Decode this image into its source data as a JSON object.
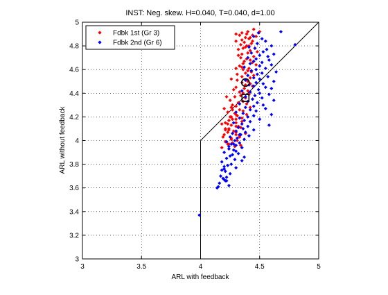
{
  "chart_data": {
    "type": "scatter",
    "title": "INST: Neg. skew. H=0.040, T=0.040, d=1.00",
    "xlabel": "ARL with feedback",
    "ylabel": "ARL without feedback",
    "xlim": [
      3,
      5
    ],
    "ylim": [
      3,
      5
    ],
    "xticks": [
      3,
      3.5,
      4,
      4.5,
      5
    ],
    "xtick_labels": [
      "3",
      "3.5",
      "4",
      "4.5",
      "5"
    ],
    "yticks": [
      3,
      3.2,
      3.4,
      3.6,
      3.8,
      4,
      4.2,
      4.4,
      4.6,
      4.8,
      5
    ],
    "ytick_labels": [
      "3",
      "3.2",
      "3.4",
      "3.6",
      "3.8",
      "4",
      "4.2",
      "4.4",
      "4.6",
      "4.8",
      "5"
    ],
    "grid": true,
    "legend_position": "top-left",
    "colors": {
      "red": "#ff0000",
      "blue": "#0000ff",
      "axis": "#000000"
    },
    "reference_lines": [
      {
        "x": [
          4,
          5
        ],
        "y": [
          4,
          5
        ]
      },
      {
        "x": [
          4,
          4
        ],
        "y": [
          3,
          4
        ]
      }
    ],
    "markers": [
      {
        "shape": "circle",
        "x": 4.38,
        "y": 4.49
      },
      {
        "shape": "square",
        "x": 4.38,
        "y": 4.36
      }
    ],
    "series": [
      {
        "name": "Fdbk 1st  (Gr 3)",
        "color": "#ff0000",
        "marker": "diamond",
        "x": [
          4.45,
          4.5,
          4.4,
          4.35,
          4.39,
          4.3,
          4.33,
          4.44,
          4.47,
          4.38,
          4.42,
          4.41,
          4.35,
          4.44,
          4.3,
          4.37,
          4.43,
          4.34,
          4.39,
          4.41,
          4.38,
          4.46,
          4.36,
          4.32,
          4.42,
          4.48,
          4.4,
          4.35,
          4.32,
          4.45,
          4.34,
          4.39,
          4.42,
          4.37,
          4.44,
          4.36,
          4.47,
          4.33,
          4.35,
          4.3,
          4.41,
          4.36,
          4.4,
          4.43,
          4.38,
          4.31,
          4.45,
          4.35,
          4.42,
          4.26,
          4.31,
          4.4,
          4.35,
          4.42,
          4.38,
          4.44,
          4.3,
          4.37,
          4.28,
          4.4,
          4.33,
          4.36,
          4.41,
          4.34,
          4.29,
          4.38,
          4.44,
          4.25,
          4.36,
          4.32,
          4.39,
          4.27,
          4.3,
          4.42,
          4.2,
          4.33,
          4.36,
          4.23,
          4.29,
          4.39,
          4.31,
          4.25,
          4.35,
          4.3,
          4.24,
          4.35,
          4.3,
          4.18,
          4.26,
          4.3,
          4.34,
          4.21,
          4.24,
          4.28,
          4.23,
          4.38,
          4.3,
          4.33,
          4.19,
          4.26,
          4.26,
          4.31,
          4.21,
          4.27,
          4.23,
          4.34,
          4.29,
          4.18,
          4.24,
          4.3,
          4.21,
          4.33,
          4.22,
          4.27,
          4.27,
          4.24,
          4.2,
          4.3,
          4.24,
          4.26,
          4.32,
          4.21,
          4.23,
          4.22,
          4.26,
          4.3
        ],
        "y": [
          4.94,
          4.92,
          4.92,
          4.91,
          4.9,
          4.9,
          4.89,
          4.89,
          4.88,
          4.87,
          4.87,
          4.86,
          4.85,
          4.84,
          4.84,
          4.83,
          4.82,
          4.81,
          4.8,
          4.8,
          4.79,
          4.78,
          4.78,
          4.77,
          4.76,
          4.75,
          4.74,
          4.73,
          4.72,
          4.71,
          4.7,
          4.69,
          4.68,
          4.67,
          4.66,
          4.65,
          4.64,
          4.63,
          4.62,
          4.61,
          4.61,
          4.6,
          4.59,
          4.58,
          4.57,
          4.56,
          4.55,
          4.54,
          4.53,
          4.52,
          4.51,
          4.5,
          4.49,
          4.48,
          4.47,
          4.46,
          4.45,
          4.44,
          4.43,
          4.42,
          4.41,
          4.4,
          4.39,
          4.38,
          4.37,
          4.36,
          4.35,
          4.34,
          4.33,
          4.32,
          4.31,
          4.3,
          4.29,
          4.28,
          4.27,
          4.26,
          4.25,
          4.24,
          4.23,
          4.22,
          4.21,
          4.2,
          4.19,
          4.18,
          4.17,
          4.16,
          4.15,
          4.14,
          4.13,
          4.12,
          4.11,
          4.1,
          4.09,
          4.08,
          4.07,
          4.06,
          4.05,
          4.04,
          4.03,
          4.02,
          4.01,
          4.0,
          3.99,
          3.98,
          3.97,
          3.96,
          3.95,
          3.94,
          3.93,
          4.08,
          4.15,
          4.03,
          4.37,
          4.18,
          4.26,
          4.1,
          4.05,
          4.22,
          3.97,
          4.2,
          4.12,
          4.09,
          4.14,
          3.99,
          4.28,
          4.07
        ]
      },
      {
        "name": "Fdbk 2nd (Gr 6)",
        "color": "#0000ff",
        "marker": "diamond",
        "x": [
          4.68,
          4.8,
          4.49,
          4.45,
          4.52,
          4.55,
          4.48,
          4.6,
          4.41,
          4.46,
          4.56,
          4.53,
          4.43,
          4.62,
          4.5,
          4.57,
          4.4,
          4.47,
          4.58,
          4.45,
          4.52,
          4.42,
          4.6,
          4.5,
          4.37,
          4.55,
          4.47,
          4.43,
          4.64,
          4.52,
          4.48,
          4.4,
          4.57,
          4.45,
          4.5,
          4.38,
          4.62,
          4.47,
          4.53,
          4.41,
          4.45,
          4.55,
          4.6,
          4.49,
          4.35,
          4.42,
          4.5,
          4.58,
          4.46,
          4.38,
          4.52,
          4.44,
          4.62,
          4.4,
          4.48,
          4.33,
          4.53,
          4.45,
          4.38,
          4.55,
          4.42,
          4.47,
          4.3,
          4.36,
          4.6,
          4.45,
          4.4,
          4.33,
          4.5,
          4.37,
          4.42,
          4.28,
          4.35,
          4.58,
          4.4,
          4.32,
          4.36,
          4.45,
          4.3,
          4.38,
          4.27,
          4.34,
          4.41,
          4.25,
          4.31,
          4.37,
          4.29,
          4.22,
          4.33,
          4.26,
          4.3,
          4.24,
          4.35,
          4.28,
          4.2,
          4.32,
          4.25,
          4.22,
          4.29,
          4.18,
          4.26,
          4.23,
          4.3,
          4.2,
          4.27,
          4.24,
          4.21,
          4.33,
          4.35,
          4.3,
          4.28,
          4.37,
          4.25,
          4.22,
          4.19,
          4.21,
          4.16,
          4.24,
          4.2,
          4.18,
          4.14,
          4.22,
          4.17,
          4.2,
          4.15,
          3.99
        ],
        "y": [
          4.92,
          4.81,
          4.91,
          4.88,
          4.86,
          4.84,
          4.82,
          4.8,
          4.79,
          4.78,
          4.77,
          4.75,
          4.74,
          4.73,
          4.72,
          4.71,
          4.7,
          4.69,
          4.68,
          4.67,
          4.66,
          4.65,
          4.64,
          4.63,
          4.62,
          4.61,
          4.6,
          4.59,
          4.58,
          4.57,
          4.56,
          4.55,
          4.54,
          4.53,
          4.52,
          4.51,
          4.5,
          4.49,
          4.48,
          4.47,
          4.46,
          4.45,
          4.44,
          4.43,
          4.42,
          4.41,
          4.4,
          4.39,
          4.38,
          4.37,
          4.36,
          4.35,
          4.34,
          4.33,
          4.32,
          4.31,
          4.3,
          4.29,
          4.28,
          4.27,
          4.26,
          4.25,
          4.24,
          4.23,
          4.22,
          4.21,
          4.2,
          4.19,
          4.18,
          4.17,
          4.16,
          4.15,
          4.14,
          4.13,
          4.12,
          4.11,
          4.1,
          4.09,
          4.08,
          4.07,
          4.06,
          4.05,
          4.04,
          4.03,
          4.02,
          4.01,
          4.0,
          3.99,
          3.98,
          3.97,
          3.96,
          3.95,
          3.94,
          3.92,
          3.9,
          3.89,
          3.87,
          3.85,
          3.84,
          3.82,
          3.8,
          3.79,
          3.77,
          3.76,
          3.88,
          3.93,
          3.74,
          4.05,
          3.83,
          3.91,
          3.97,
          3.86,
          3.72,
          3.69,
          3.68,
          3.66,
          3.64,
          3.62,
          3.78,
          3.75,
          3.6,
          3.66,
          3.7,
          3.67,
          3.61,
          3.37
        ]
      }
    ]
  }
}
